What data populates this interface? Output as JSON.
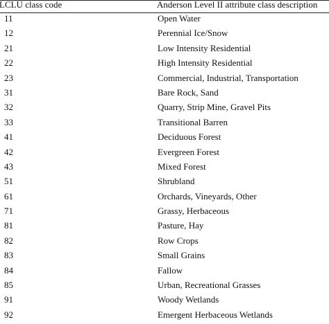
{
  "table": {
    "headers": {
      "code": "LCLU class code",
      "description": "Anderson Level II attribute class description"
    },
    "rows": [
      {
        "code": "11",
        "description": "Open Water"
      },
      {
        "code": "12",
        "description": "Perennial Ice/Snow"
      },
      {
        "code": "21",
        "description": "Low Intensity Residential"
      },
      {
        "code": "22",
        "description": "High Intensity Residential"
      },
      {
        "code": "23",
        "description": "Commercial, Industrial, Transportation"
      },
      {
        "code": "31",
        "description": "Bare Rock, Sand"
      },
      {
        "code": "32",
        "description": "Quarry, Strip Mine, Gravel Pits"
      },
      {
        "code": "33",
        "description": "Transitional Barren"
      },
      {
        "code": "41",
        "description": "Deciduous Forest"
      },
      {
        "code": "42",
        "description": "Evergreen Forest"
      },
      {
        "code": "43",
        "description": "Mixed Forest"
      },
      {
        "code": "51",
        "description": "Shrubland"
      },
      {
        "code": "61",
        "description": "Orchards, Vineyards, Other"
      },
      {
        "code": "71",
        "description": "Grassy, Herbaceous"
      },
      {
        "code": "81",
        "description": "Pasture, Hay"
      },
      {
        "code": "82",
        "description": "Row Crops"
      },
      {
        "code": "83",
        "description": "Small Grains"
      },
      {
        "code": "84",
        "description": "Fallow"
      },
      {
        "code": "85",
        "description": "Urban, Recreational Grasses"
      },
      {
        "code": "91",
        "description": "Woody Wetlands"
      },
      {
        "code": "92",
        "description": "Emergent Herbaceous Wetlands"
      }
    ]
  }
}
